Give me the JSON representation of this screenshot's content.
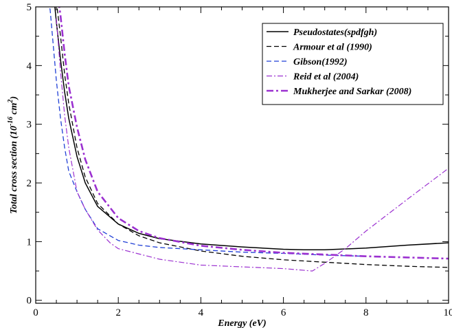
{
  "chart_data": {
    "type": "line",
    "title": "",
    "xlabel": "Energy (eV)",
    "ylabel_main": "Total cross section (10",
    "ylabel_exp1": "-16",
    "ylabel_mid": "cm",
    "ylabel_exp2": "2",
    "ylabel_end": ")",
    "xlim": [
      0,
      10
    ],
    "ylim": [
      -0.05,
      5
    ],
    "x_ticks": [
      0,
      2,
      4,
      6,
      8,
      10
    ],
    "y_ticks": [
      0,
      1,
      2,
      3,
      4,
      5
    ],
    "x_tick_labels": [
      "0",
      "2",
      "4",
      "6",
      "8",
      "10"
    ],
    "y_tick_labels": [
      "0",
      "1",
      "2",
      "3",
      "4",
      "5"
    ],
    "grid": false,
    "legend_position": "top-right",
    "series": [
      {
        "name": "Pseudostates(spdfgh)",
        "color": "#000000",
        "dash": "solid",
        "x": [
          0.45,
          0.5,
          0.6,
          0.7,
          0.8,
          1.0,
          1.2,
          1.5,
          2.0,
          2.5,
          3.0,
          4.0,
          5.0,
          6.0,
          6.5,
          7.0,
          8.0,
          9.0,
          10.0
        ],
        "y": [
          5.1,
          4.75,
          4.1,
          3.55,
          3.1,
          2.45,
          2.0,
          1.6,
          1.3,
          1.14,
          1.05,
          0.96,
          0.91,
          0.87,
          0.86,
          0.86,
          0.89,
          0.94,
          0.98
        ]
      },
      {
        "name": "Armour et al (1990)",
        "color": "#000000",
        "dash": "dashed",
        "x": [
          0.5,
          0.6,
          0.7,
          0.8,
          1.0,
          1.2,
          1.5,
          2.0,
          2.5,
          3.0,
          4.0,
          5.0,
          6.0,
          7.0,
          8.0,
          9.0,
          10.0
        ],
        "y": [
          5.1,
          4.5,
          3.85,
          3.35,
          2.6,
          2.1,
          1.65,
          1.3,
          1.1,
          0.98,
          0.84,
          0.75,
          0.69,
          0.65,
          0.61,
          0.58,
          0.56
        ]
      },
      {
        "name": "Gibson(1992)",
        "color": "#1f3fd6",
        "dash": "dashed",
        "x": [
          0.3,
          0.35,
          0.4,
          0.5,
          0.6,
          0.7,
          0.8,
          1.0,
          1.2,
          1.5,
          2.0,
          2.5,
          3.0,
          4.0,
          5.0,
          6.0,
          7.0,
          8.0
        ],
        "y": [
          5.1,
          4.95,
          4.55,
          3.75,
          3.1,
          2.6,
          2.2,
          1.85,
          1.55,
          1.22,
          1.02,
          0.94,
          0.9,
          0.86,
          0.82,
          0.8,
          0.77,
          0.75
        ]
      },
      {
        "name": "Reid et al (2004)",
        "color": "#9b30d0",
        "dash": "dashdot",
        "x": [
          0.5,
          0.6,
          0.7,
          0.8,
          1.0,
          1.2,
          1.5,
          1.8,
          2.0,
          3.0,
          4.0,
          5.0,
          6.0,
          6.7,
          7.0,
          7.5,
          8.0,
          9.0,
          10.0
        ],
        "y": [
          4.8,
          3.9,
          3.15,
          2.6,
          1.85,
          1.55,
          1.2,
          0.98,
          0.88,
          0.7,
          0.6,
          0.57,
          0.54,
          0.5,
          0.63,
          0.88,
          1.18,
          1.72,
          2.25
        ]
      },
      {
        "name": "Mukherjee and Sarkar (2008)",
        "color": "#9b30d0",
        "dash": "dashdotbold",
        "x": [
          0.55,
          0.6,
          0.7,
          0.8,
          1.0,
          1.2,
          1.5,
          2.0,
          2.5,
          3.0,
          4.0,
          5.0,
          6.0,
          7.0,
          8.0,
          9.0,
          10.0
        ],
        "y": [
          5.1,
          4.85,
          4.2,
          3.65,
          2.95,
          2.4,
          1.85,
          1.4,
          1.18,
          1.06,
          0.93,
          0.86,
          0.81,
          0.78,
          0.75,
          0.73,
          0.71
        ]
      }
    ]
  }
}
